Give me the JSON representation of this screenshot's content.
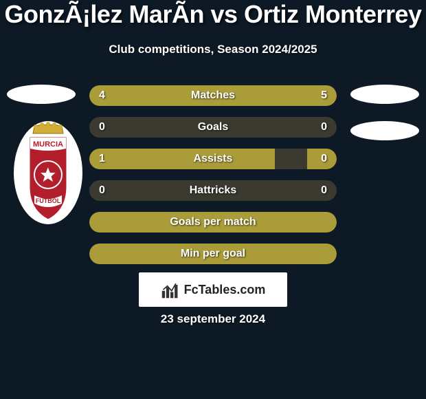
{
  "title": "GonzÃ¡lez MarÃ­n vs Ortiz Monterrey",
  "subtitle": "Club competitions, Season 2024/2025",
  "date": "23 september 2024",
  "site": "FcTables.com",
  "colors": {
    "accent": "#aa9c39",
    "track": "#3a3a30",
    "bg": "#0d1a26",
    "text": "#ffffff"
  },
  "crest": {
    "top_text": "MURCIA",
    "bottom_text": "FUTBOL",
    "shield_color": "#b31e2d",
    "border_color": "#ffffff",
    "crown_color": "#d4af37"
  },
  "rows": [
    {
      "label": "Matches",
      "left": "4",
      "right": "5",
      "left_pct": 44,
      "right_pct": 56
    },
    {
      "label": "Goals",
      "left": "0",
      "right": "0",
      "left_pct": 0,
      "right_pct": 0
    },
    {
      "label": "Assists",
      "left": "1",
      "right": "0",
      "left_pct": 75,
      "right_pct": 12
    },
    {
      "label": "Hattricks",
      "left": "0",
      "right": "0",
      "left_pct": 0,
      "right_pct": 0
    },
    {
      "label": "Goals per match",
      "left": "",
      "right": "",
      "left_pct": 100,
      "right_pct": 0,
      "full": true
    },
    {
      "label": "Min per goal",
      "left": "",
      "right": "",
      "left_pct": 100,
      "right_pct": 0,
      "full": true
    }
  ]
}
